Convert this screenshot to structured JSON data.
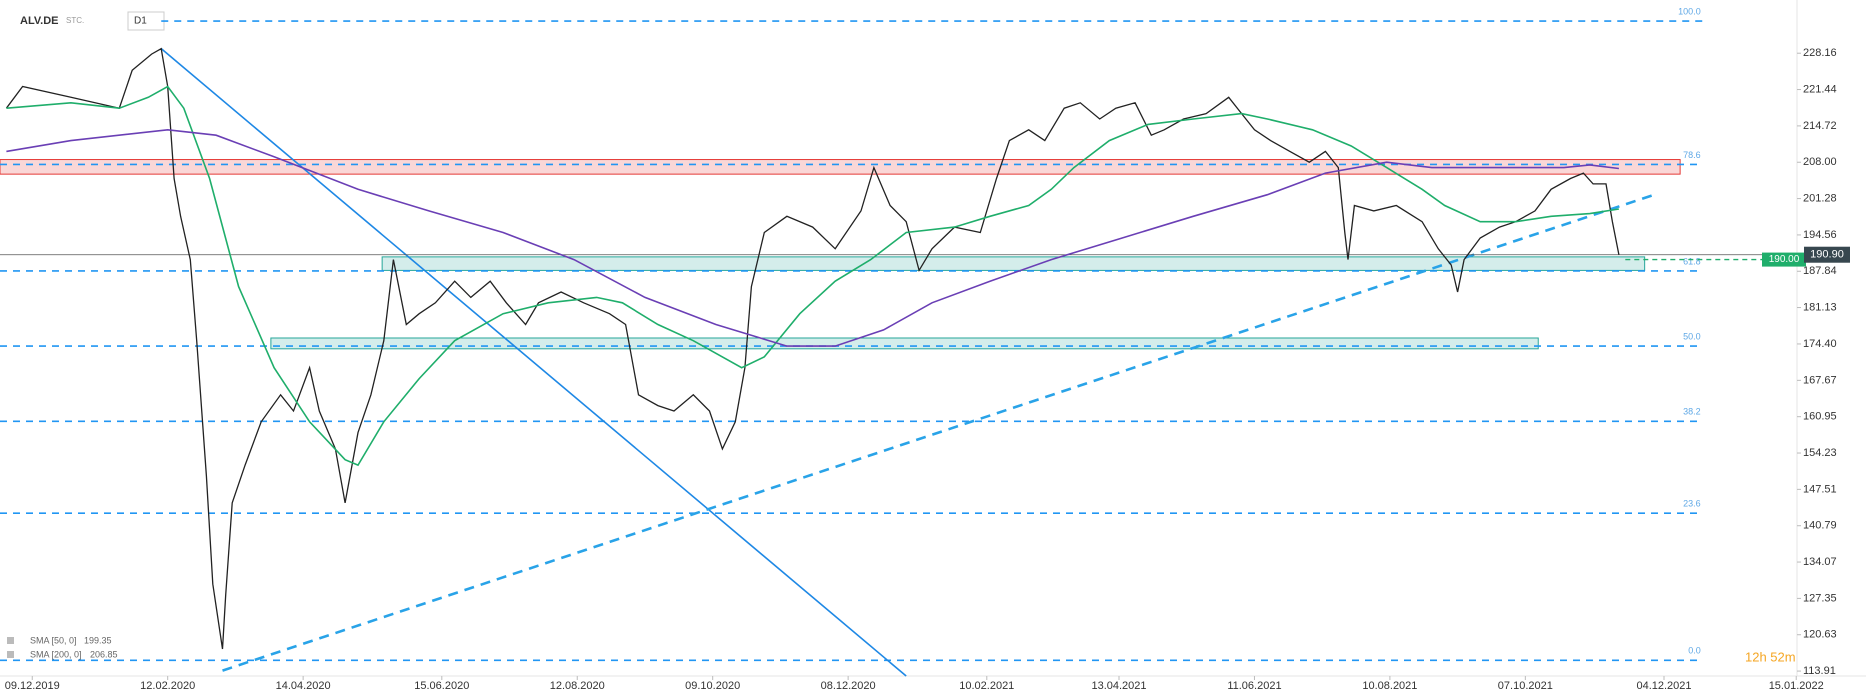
{
  "chart_data": {
    "type": "line",
    "title": "ALV.DE",
    "instrument_type": "STC.",
    "timeframe": "D1",
    "countdown": "12h 52m",
    "xlim": [
      0,
      556
    ],
    "ylim": [
      113,
      238
    ],
    "xticks": [
      {
        "value": 10,
        "label": "09.12.2019"
      },
      {
        "value": 52,
        "label": "12.02.2020"
      },
      {
        "value": 94,
        "label": "14.04.2020"
      },
      {
        "value": 137,
        "label": "15.06.2020"
      },
      {
        "value": 179,
        "label": "12.08.2020"
      },
      {
        "value": 221,
        "label": "09.10.2020"
      },
      {
        "value": 263,
        "label": "08.12.2020"
      },
      {
        "value": 306,
        "label": "10.02.2021"
      },
      {
        "value": 347,
        "label": "13.04.2021"
      },
      {
        "value": 389,
        "label": "11.06.2021"
      },
      {
        "value": 431,
        "label": "10.08.2021"
      },
      {
        "value": 473,
        "label": "07.10.2021"
      },
      {
        "value": 516,
        "label": "04.12.2021"
      },
      {
        "value": 557,
        "label": "15.01.2022"
      }
    ],
    "yticks": [
      228.16,
      221.44,
      214.72,
      {
        "value": 208,
        "label": "208.00"
      },
      201.28,
      194.56,
      187.84,
      181.13,
      {
        "value": 174.4,
        "label": "174.40"
      },
      167.67,
      160.95,
      154.23,
      147.51,
      140.79,
      134.07,
      127.35,
      120.63,
      113.91
    ],
    "series": [
      {
        "name": "ALV.DE",
        "color": "#222222",
        "x": [
          2,
          7,
          22,
          37,
          41,
          47,
          50,
          52,
          54,
          56,
          59,
          61,
          64,
          66,
          69,
          70,
          72,
          76,
          81,
          87,
          91,
          96,
          99,
          104,
          107,
          111,
          115,
          119,
          122,
          126,
          130,
          135,
          141,
          146,
          152,
          157,
          163,
          167,
          174,
          181,
          189,
          194,
          198,
          204,
          209,
          215,
          220,
          224,
          228,
          231,
          233,
          237,
          244,
          252,
          259,
          267,
          271,
          276,
          281,
          285,
          289,
          296,
          304,
          309,
          313,
          319,
          324,
          330,
          335,
          341,
          346,
          352,
          357,
          361,
          367,
          374,
          381,
          385,
          389,
          394,
          400,
          406,
          411,
          415,
          417,
          418,
          420,
          426,
          433,
          441,
          446,
          450,
          452,
          454,
          459,
          465,
          470,
          476,
          481,
          487,
          491,
          494,
          498,
          500,
          502
        ],
        "values": [
          218,
          222,
          220,
          218,
          225,
          228,
          229,
          222,
          205,
          198,
          190,
          175,
          150,
          130,
          118,
          128,
          145,
          152,
          160,
          165,
          162,
          170,
          162,
          155,
          145,
          158,
          165,
          175,
          190,
          178,
          180,
          182,
          186,
          183,
          186,
          182,
          178,
          182,
          184,
          182,
          180,
          178,
          165,
          163,
          162,
          165,
          162,
          155,
          160,
          170,
          185,
          195,
          198,
          196,
          192,
          199,
          207,
          200,
          197,
          188,
          192,
          196,
          195,
          205,
          212,
          214,
          212,
          218,
          219,
          216,
          218,
          219,
          213,
          214,
          216,
          217,
          220,
          217,
          214,
          212,
          210,
          208,
          210,
          207,
          195,
          190,
          200,
          199,
          200,
          197,
          192,
          189,
          184,
          190,
          194,
          196,
          197,
          199,
          203,
          205,
          206,
          204,
          204,
          197,
          190.9
        ]
      },
      {
        "name": "SMA [50, 0]",
        "color": "#1fae6b",
        "x": [
          2,
          22,
          37,
          46,
          52,
          57,
          65,
          74,
          85,
          96,
          107,
          111,
          119,
          130,
          141,
          156,
          170,
          185,
          193,
          204,
          215,
          230,
          237,
          248,
          259,
          270,
          281,
          296,
          307,
          319,
          326,
          333,
          344,
          356,
          370,
          385,
          393,
          407,
          419,
          430,
          441,
          448,
          459,
          470,
          481,
          493,
          502
        ],
        "values": [
          218,
          219,
          218,
          220,
          222,
          218,
          205,
          185,
          170,
          160,
          153,
          152,
          160,
          168,
          175,
          180,
          182,
          183,
          182,
          178,
          175,
          170,
          172,
          180,
          186,
          190,
          195,
          196,
          198,
          200,
          203,
          207,
          212,
          215,
          216,
          217,
          216,
          214,
          211,
          207,
          203,
          200,
          197,
          197,
          198,
          198.5,
          199.35
        ]
      },
      {
        "name": "SMA [200, 0]",
        "color": "#6a3fb5",
        "x": [
          2,
          22,
          52,
          67,
          85,
          111,
          133,
          156,
          178,
          200,
          222,
          244,
          259,
          274,
          289,
          307,
          326,
          348,
          370,
          393,
          411,
          430,
          444,
          467,
          485,
          493,
          502
        ],
        "values": [
          210,
          212,
          214,
          213,
          209,
          203,
          199,
          195,
          190,
          183,
          178,
          174,
          174,
          177,
          182,
          186,
          190,
          194,
          198,
          202,
          206,
          208,
          207,
          207,
          207,
          207.5,
          206.85
        ]
      }
    ],
    "sma_legend": [
      {
        "label": "SMA [50, 0]",
        "value": 199.35
      },
      {
        "label": "SMA [200, 0]",
        "value": 206.85
      }
    ],
    "fib_levels": [
      {
        "label": "100.0",
        "price": 234.1
      },
      {
        "label": "78.6",
        "price": 207.6
      },
      {
        "label": "61.8",
        "price": 187.9
      },
      {
        "label": "50.0",
        "price": 174.0
      },
      {
        "label": "38.2",
        "price": 160.1
      },
      {
        "label": "23.6",
        "price": 143.1
      },
      {
        "label": "0.0",
        "price": 115.9
      }
    ],
    "zones": [
      {
        "color": "#e53935",
        "x": [
          0,
          521
        ],
        "price": [
          205.8,
          208.5
        ]
      },
      {
        "color": "#26a69a",
        "x": [
          118.5,
          510
        ],
        "price": [
          188,
          190.5
        ]
      },
      {
        "color": "#26a69a",
        "x": [
          84,
          477
        ],
        "price": [
          173.5,
          175.5
        ]
      }
    ],
    "trendlines": [
      {
        "color": "#1e88e5",
        "style": "solid",
        "x": [
          50,
          281
        ],
        "price": [
          229,
          113
        ]
      },
      {
        "color": "#29a3e8",
        "style": "dashed",
        "x": [
          69,
          513
        ],
        "price": [
          114,
          202
        ]
      }
    ],
    "last_price": {
      "value": 190.9,
      "label": "190.90"
    },
    "alert_price": {
      "value": 190,
      "label": "190.00"
    }
  }
}
